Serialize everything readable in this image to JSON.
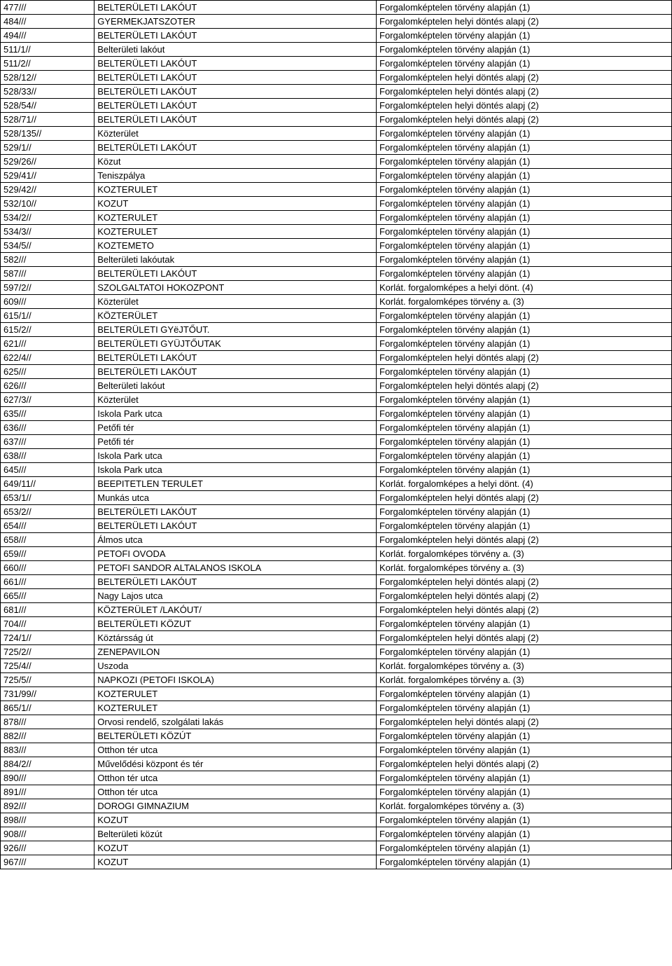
{
  "table": {
    "rows": [
      {
        "c1": "477///",
        "c2": "BELTERÜLETI LAKÓUT",
        "c3": "Forgalomképtelen törvény alapján (1)"
      },
      {
        "c1": "484///",
        "c2": "GYERMEKJATSZOTER",
        "c3": "Forgalomképtelen helyi döntés alapj (2)"
      },
      {
        "c1": "494///",
        "c2": "BELTERÜLETI LAKÓUT",
        "c3": "Forgalomképtelen törvény alapján (1)"
      },
      {
        "c1": "511/1//",
        "c2": "Belterületi lakóut",
        "c3": "Forgalomképtelen törvény alapján (1)"
      },
      {
        "c1": "511/2//",
        "c2": "BELTERÜLETI LAKÓUT",
        "c3": "Forgalomképtelen törvény alapján (1)"
      },
      {
        "c1": "528/12//",
        "c2": "BELTERÜLETI LAKÓUT",
        "c3": "Forgalomképtelen helyi döntés alapj (2)"
      },
      {
        "c1": "528/33//",
        "c2": "BELTERÜLETI LAKÓUT",
        "c3": "Forgalomképtelen helyi döntés alapj (2)"
      },
      {
        "c1": "528/54//",
        "c2": "BELTERÜLETI LAKÓUT",
        "c3": "Forgalomképtelen helyi döntés alapj (2)"
      },
      {
        "c1": "528/71//",
        "c2": "BELTERÜLETI LAKÓUT",
        "c3": "Forgalomképtelen helyi döntés alapj (2)"
      },
      {
        "c1": "528/135//",
        "c2": "Közterület",
        "c3": "Forgalomképtelen törvény alapján (1)"
      },
      {
        "c1": "529/1//",
        "c2": "BELTERÜLETI LAKÓUT",
        "c3": "Forgalomképtelen törvény alapján (1)"
      },
      {
        "c1": "529/26//",
        "c2": "Közut",
        "c3": "Forgalomképtelen törvény alapján (1)"
      },
      {
        "c1": "529/41//",
        "c2": "Teniszpálya",
        "c3": "Forgalomképtelen törvény alapján (1)"
      },
      {
        "c1": "529/42//",
        "c2": "KOZTERULET",
        "c3": "Forgalomképtelen törvény alapján (1)"
      },
      {
        "c1": "532/10//",
        "c2": "KOZUT",
        "c3": "Forgalomképtelen törvény alapján (1)"
      },
      {
        "c1": "534/2//",
        "c2": "KOZTERULET",
        "c3": "Forgalomképtelen törvény alapján (1)"
      },
      {
        "c1": "534/3//",
        "c2": "KOZTERULET",
        "c3": "Forgalomképtelen törvény alapján (1)"
      },
      {
        "c1": "534/5//",
        "c2": "KOZTEMETO",
        "c3": "Forgalomképtelen törvény alapján (1)"
      },
      {
        "c1": "582///",
        "c2": "Belterületi lakóutak",
        "c3": "Forgalomképtelen törvény alapján (1)"
      },
      {
        "c1": "587///",
        "c2": "BELTERÜLETI LAKÓUT",
        "c3": "Forgalomképtelen törvény alapján (1)"
      },
      {
        "c1": "597/2//",
        "c2": "SZOLGALTATOI HOKOZPONT",
        "c3": "Korlát. forgalomképes a helyi dönt. (4)"
      },
      {
        "c1": "609///",
        "c2": "Közterület",
        "c3": "Korlát. forgalomképes  törvény a. (3)"
      },
      {
        "c1": "615/1//",
        "c2": "KÖZTERÜLET",
        "c3": "Forgalomképtelen törvény alapján (1)"
      },
      {
        "c1": "615/2//",
        "c2": "BELTERÜLETI GYëJTŐUT.",
        "c3": "Forgalomképtelen törvény alapján (1)"
      },
      {
        "c1": "621///",
        "c2": "BELTERÜLETI GYÜJTŐUTAK",
        "c3": "Forgalomképtelen törvény alapján (1)"
      },
      {
        "c1": "622/4//",
        "c2": "BELTERÜLETI LAKÓUT",
        "c3": "Forgalomképtelen helyi döntés alapj (2)"
      },
      {
        "c1": "625///",
        "c2": "BELTERÜLETI LAKÓUT",
        "c3": "Forgalomképtelen törvény alapján (1)"
      },
      {
        "c1": "626///",
        "c2": "Belterületi lakóut",
        "c3": "Forgalomképtelen helyi döntés alapj (2)"
      },
      {
        "c1": "627/3//",
        "c2": "Közterület",
        "c3": "Forgalomképtelen törvény alapján (1)"
      },
      {
        "c1": "635///",
        "c2": "Iskola Park utca",
        "c3": "Forgalomképtelen törvény alapján (1)"
      },
      {
        "c1": "636///",
        "c2": "Petőfi tér",
        "c3": "Forgalomképtelen törvény alapján (1)"
      },
      {
        "c1": "637///",
        "c2": "Petőfi tér",
        "c3": "Forgalomképtelen törvény alapján (1)"
      },
      {
        "c1": "638///",
        "c2": "Iskola Park utca",
        "c3": "Forgalomképtelen törvény alapján (1)"
      },
      {
        "c1": "645///",
        "c2": "Iskola Park utca",
        "c3": "Forgalomképtelen törvény alapján (1)"
      },
      {
        "c1": "649/11//",
        "c2": "BEEPITETLEN TERULET",
        "c3": "Korlát. forgalomképes a helyi dönt. (4)"
      },
      {
        "c1": "653/1//",
        "c2": "Munkás utca",
        "c3": "Forgalomképtelen helyi döntés alapj (2)"
      },
      {
        "c1": "653/2//",
        "c2": "BELTERÜLETI LAKÓUT",
        "c3": "Forgalomképtelen törvény alapján (1)"
      },
      {
        "c1": "654///",
        "c2": "BELTERÜLETI LAKÓUT",
        "c3": "Forgalomképtelen törvény alapján (1)"
      },
      {
        "c1": "658///",
        "c2": "Álmos utca",
        "c3": "Forgalomképtelen helyi döntés alapj (2)"
      },
      {
        "c1": "659///",
        "c2": "PETOFI OVODA",
        "c3": "Korlát. forgalomképes  törvény a. (3)"
      },
      {
        "c1": "660///",
        "c2": "PETOFI SANDOR ALTALANOS ISKOLA",
        "c3": "Korlát. forgalomképes  törvény a. (3)"
      },
      {
        "c1": "661///",
        "c2": "BELTERÜLETI LAKÓUT",
        "c3": "Forgalomképtelen helyi döntés alapj (2)"
      },
      {
        "c1": "665///",
        "c2": "Nagy Lajos utca",
        "c3": "Forgalomképtelen helyi döntés alapj (2)"
      },
      {
        "c1": "681///",
        "c2": "KÖZTERÜLET /LAKÓUT/",
        "c3": "Forgalomképtelen helyi döntés alapj (2)"
      },
      {
        "c1": "704///",
        "c2": "BELTERÜLETI KÖZUT",
        "c3": "Forgalomképtelen törvény alapján (1)"
      },
      {
        "c1": "724/1//",
        "c2": "Köztársság út",
        "c3": "Forgalomképtelen helyi döntés alapj (2)"
      },
      {
        "c1": "725/2//",
        "c2": "ZENEPAVILON",
        "c3": "Forgalomképtelen törvény alapján (1)"
      },
      {
        "c1": "725/4//",
        "c2": "Uszoda",
        "c3": "Korlát. forgalomképes  törvény a. (3)"
      },
      {
        "c1": "725/5//",
        "c2": "NAPKOZI (PETOFI  ISKOLA)",
        "c3": "Korlát. forgalomképes  törvény a. (3)"
      },
      {
        "c1": "731/99//",
        "c2": "KOZTERULET",
        "c3": "Forgalomképtelen törvény alapján (1)"
      },
      {
        "c1": "865/1//",
        "c2": "KOZTERULET",
        "c3": "Forgalomképtelen törvény alapján (1)"
      },
      {
        "c1": "878///",
        "c2": "Orvosi rendelő, szolgálati lakás",
        "c3": "Forgalomképtelen helyi döntés alapj (2)"
      },
      {
        "c1": "882///",
        "c2": "BELTERÜLETI KÖZÚT",
        "c3": "Forgalomképtelen törvény alapján (1)"
      },
      {
        "c1": "883///",
        "c2": "Otthon tér utca",
        "c3": "Forgalomképtelen törvény alapján (1)"
      },
      {
        "c1": "884/2//",
        "c2": "Művelődési központ és tér",
        "c3": "Forgalomképtelen helyi döntés alapj (2)"
      },
      {
        "c1": "890///",
        "c2": "Otthon tér utca",
        "c3": "Forgalomképtelen törvény alapján (1)"
      },
      {
        "c1": "891///",
        "c2": "Otthon tér utca",
        "c3": "Forgalomképtelen törvény alapján (1)"
      },
      {
        "c1": "892///",
        "c2": "DOROGI GIMNAZIUM",
        "c3": "Korlát. forgalomképes  törvény a. (3)"
      },
      {
        "c1": "898///",
        "c2": "KOZUT",
        "c3": "Forgalomképtelen törvény alapján (1)"
      },
      {
        "c1": "908///",
        "c2": "Belterületi közút",
        "c3": "Forgalomképtelen törvény alapján (1)"
      },
      {
        "c1": "926///",
        "c2": "KOZUT",
        "c3": "Forgalomképtelen törvény alapján (1)"
      },
      {
        "c1": "967///",
        "c2": "KOZUT",
        "c3": "Forgalomképtelen törvény alapján (1)"
      }
    ]
  }
}
